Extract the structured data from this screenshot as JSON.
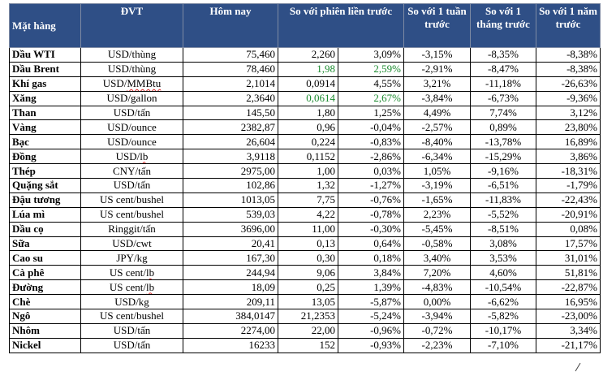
{
  "headers": {
    "mat_hang": "Mặt hàng",
    "dvt": "ĐVT",
    "hom_nay": "Hôm nay",
    "phien_truoc": "So với phiên liền trước",
    "tuan": "So với 1 tuần trước",
    "thang": "So với 1 tháng trước",
    "nam": "So với 1 năm trước"
  },
  "rows": [
    {
      "name": "Dầu WTI",
      "unit": "USD/thùng",
      "today": "75,460",
      "chg": "2,260",
      "chg_pct": "3,09%",
      "week": "-3,15%",
      "month": "-8,35%",
      "year": "-8,38%",
      "green": false
    },
    {
      "name": "Dầu Brent",
      "unit": "USD/thùng",
      "today": "78,460",
      "chg": "1,98",
      "chg_pct": "2,59%",
      "week": "-2,91%",
      "month": "-8,47%",
      "year": "-8,38%",
      "green": true
    },
    {
      "name": "Khí gas",
      "unit": "USD/MMBtu",
      "today": "2,1014",
      "chg": "0,0914",
      "chg_pct": "4,55%",
      "week": "3,21%",
      "month": "-11,18%",
      "year": "-26,63%",
      "green": false
    },
    {
      "name": "Xăng",
      "unit": "USD/gallon",
      "today": "2,3640",
      "chg": "0,0614",
      "chg_pct": "2,67%",
      "week": "-3,84%",
      "month": "-6,73%",
      "year": "-9,36%",
      "green": true
    },
    {
      "name": "Than",
      "unit": "USD/tấn",
      "today": "145,50",
      "chg": "1,80",
      "chg_pct": "1,25%",
      "week": "4,49%",
      "month": "7,74%",
      "year": "3,12%",
      "green": false
    },
    {
      "name": "Vàng",
      "unit": "USD/ounce",
      "today": "2382,87",
      "chg": "0,96",
      "chg_pct": "-0,04%",
      "week": "-2,57%",
      "month": "0,89%",
      "year": "23,80%",
      "green": false
    },
    {
      "name": "Bạc",
      "unit": "USD/ounce",
      "today": "26,604",
      "chg": "0,224",
      "chg_pct": "-0,83%",
      "week": "-8,40%",
      "month": "-13,78%",
      "year": "16,89%",
      "green": false
    },
    {
      "name": "Đồng",
      "unit": "USD/lb",
      "today": "3,9118",
      "chg": "0,1152",
      "chg_pct": "-2,86%",
      "week": "-6,34%",
      "month": "-15,29%",
      "year": "3,86%",
      "green": false
    },
    {
      "name": "Thép",
      "unit": "CNY/tấn",
      "today": "2975,00",
      "chg": "1,00",
      "chg_pct": "0,03%",
      "week": "1,05%",
      "month": "-9,16%",
      "year": "-18,31%",
      "green": false
    },
    {
      "name": "Quặng sắt",
      "unit": "USD/tấn",
      "today": "102,86",
      "chg": "1,32",
      "chg_pct": "-1,27%",
      "week": "-3,19%",
      "month": "-6,51%",
      "year": "-1,79%",
      "green": false
    },
    {
      "name": "Đậu tương",
      "unit": "US cent/bushel",
      "today": "1013,05",
      "chg": "7,75",
      "chg_pct": "-0,76%",
      "week": "-1,65%",
      "month": "-11,83%",
      "year": "-22,43%",
      "green": false
    },
    {
      "name": "Lúa mì",
      "unit": "US cent/bushel",
      "today": "539,03",
      "chg": "4,22",
      "chg_pct": "-0,78%",
      "week": "2,23%",
      "month": "-5,52%",
      "year": "-20,91%",
      "green": false
    },
    {
      "name": "Dầu cọ",
      "unit": "Ringgit/tấn",
      "today": "3696,00",
      "chg": "11,00",
      "chg_pct": "-0,30%",
      "week": "-5,45%",
      "month": "-8,51%",
      "year": "0,08%",
      "green": false
    },
    {
      "name": "Sữa",
      "unit": "USD/cwt",
      "today": "20,41",
      "chg": "0,13",
      "chg_pct": "0,64%",
      "week": "-0,58%",
      "month": "3,08%",
      "year": "17,57%",
      "green": false
    },
    {
      "name": "Cao su",
      "unit": "JPY/kg",
      "today": "167,30",
      "chg": "0,30",
      "chg_pct": "0,18%",
      "week": "3,40%",
      "month": "3,53%",
      "year": "31,01%",
      "green": false
    },
    {
      "name": "Cà phê",
      "unit": "US cent/lb",
      "today": "244,94",
      "chg": "9,06",
      "chg_pct": "3,84%",
      "week": "7,20%",
      "month": "4,60%",
      "year": "51,81%",
      "green": false
    },
    {
      "name": "Đường",
      "unit": "US cent/lb",
      "today": "18,09",
      "chg": "0,25",
      "chg_pct": "1,39%",
      "week": "-4,83%",
      "month": "-10,54%",
      "year": "-22,87%",
      "green": false
    },
    {
      "name": "Chè",
      "unit": "USD/kg",
      "today": "209,11",
      "chg": "13,05",
      "chg_pct": "-5,87%",
      "week": "0,00%",
      "month": "-6,62%",
      "year": "16,95%",
      "green": false
    },
    {
      "name": "Ngô",
      "unit": "US cent/bushel",
      "today": "384,0147",
      "chg": "21,2353",
      "chg_pct": "-5,24%",
      "week": "-3,94%",
      "month": "-5,82%",
      "year": "-23,00%",
      "green": false
    },
    {
      "name": "Nhôm",
      "unit": "USD/tấn",
      "today": "2274,00",
      "chg": "22,00",
      "chg_pct": "-0,96%",
      "week": "-0,72%",
      "month": "-10,17%",
      "year": "3,34%",
      "green": false
    },
    {
      "name": "Nickel",
      "unit": "USD/tấn",
      "today": "16233",
      "chg": "152",
      "chg_pct": "-0,93%",
      "week": "-2,23%",
      "month": "-7,10%",
      "year": "-21,17%",
      "green": false
    }
  ]
}
